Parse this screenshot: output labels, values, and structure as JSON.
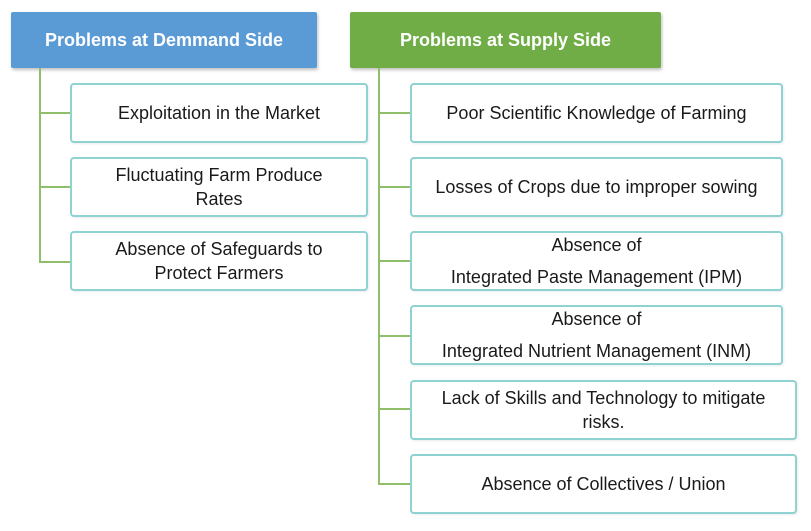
{
  "colors": {
    "demand_header": "#5b9bd5",
    "supply_header": "#70ad47",
    "box_border": "#8fd2d2",
    "connector": "#8fbf6a"
  },
  "demand": {
    "title": "Problems at Demmand Side",
    "items": [
      {
        "label": "Exploitation in the Market"
      },
      {
        "label": "Fluctuating Farm Produce\nRates"
      },
      {
        "label": "Absence of Safeguards to\nProtect Farmers"
      }
    ]
  },
  "supply": {
    "title": "Problems at Supply Side",
    "items": [
      {
        "label": "Poor Scientific Knowledge of Farming"
      },
      {
        "label": "Losses of Crops due to improper sowing"
      },
      {
        "label_top": "Absence of",
        "label_bottom": "Integrated Paste Management (IPM)"
      },
      {
        "label_top": "Absence of",
        "label_bottom": "Integrated Nutrient Management (INM)"
      },
      {
        "label": "Lack of Skills   and Technology to mitigate\nrisks."
      },
      {
        "label": "Absence of Collectives / Union"
      }
    ]
  }
}
